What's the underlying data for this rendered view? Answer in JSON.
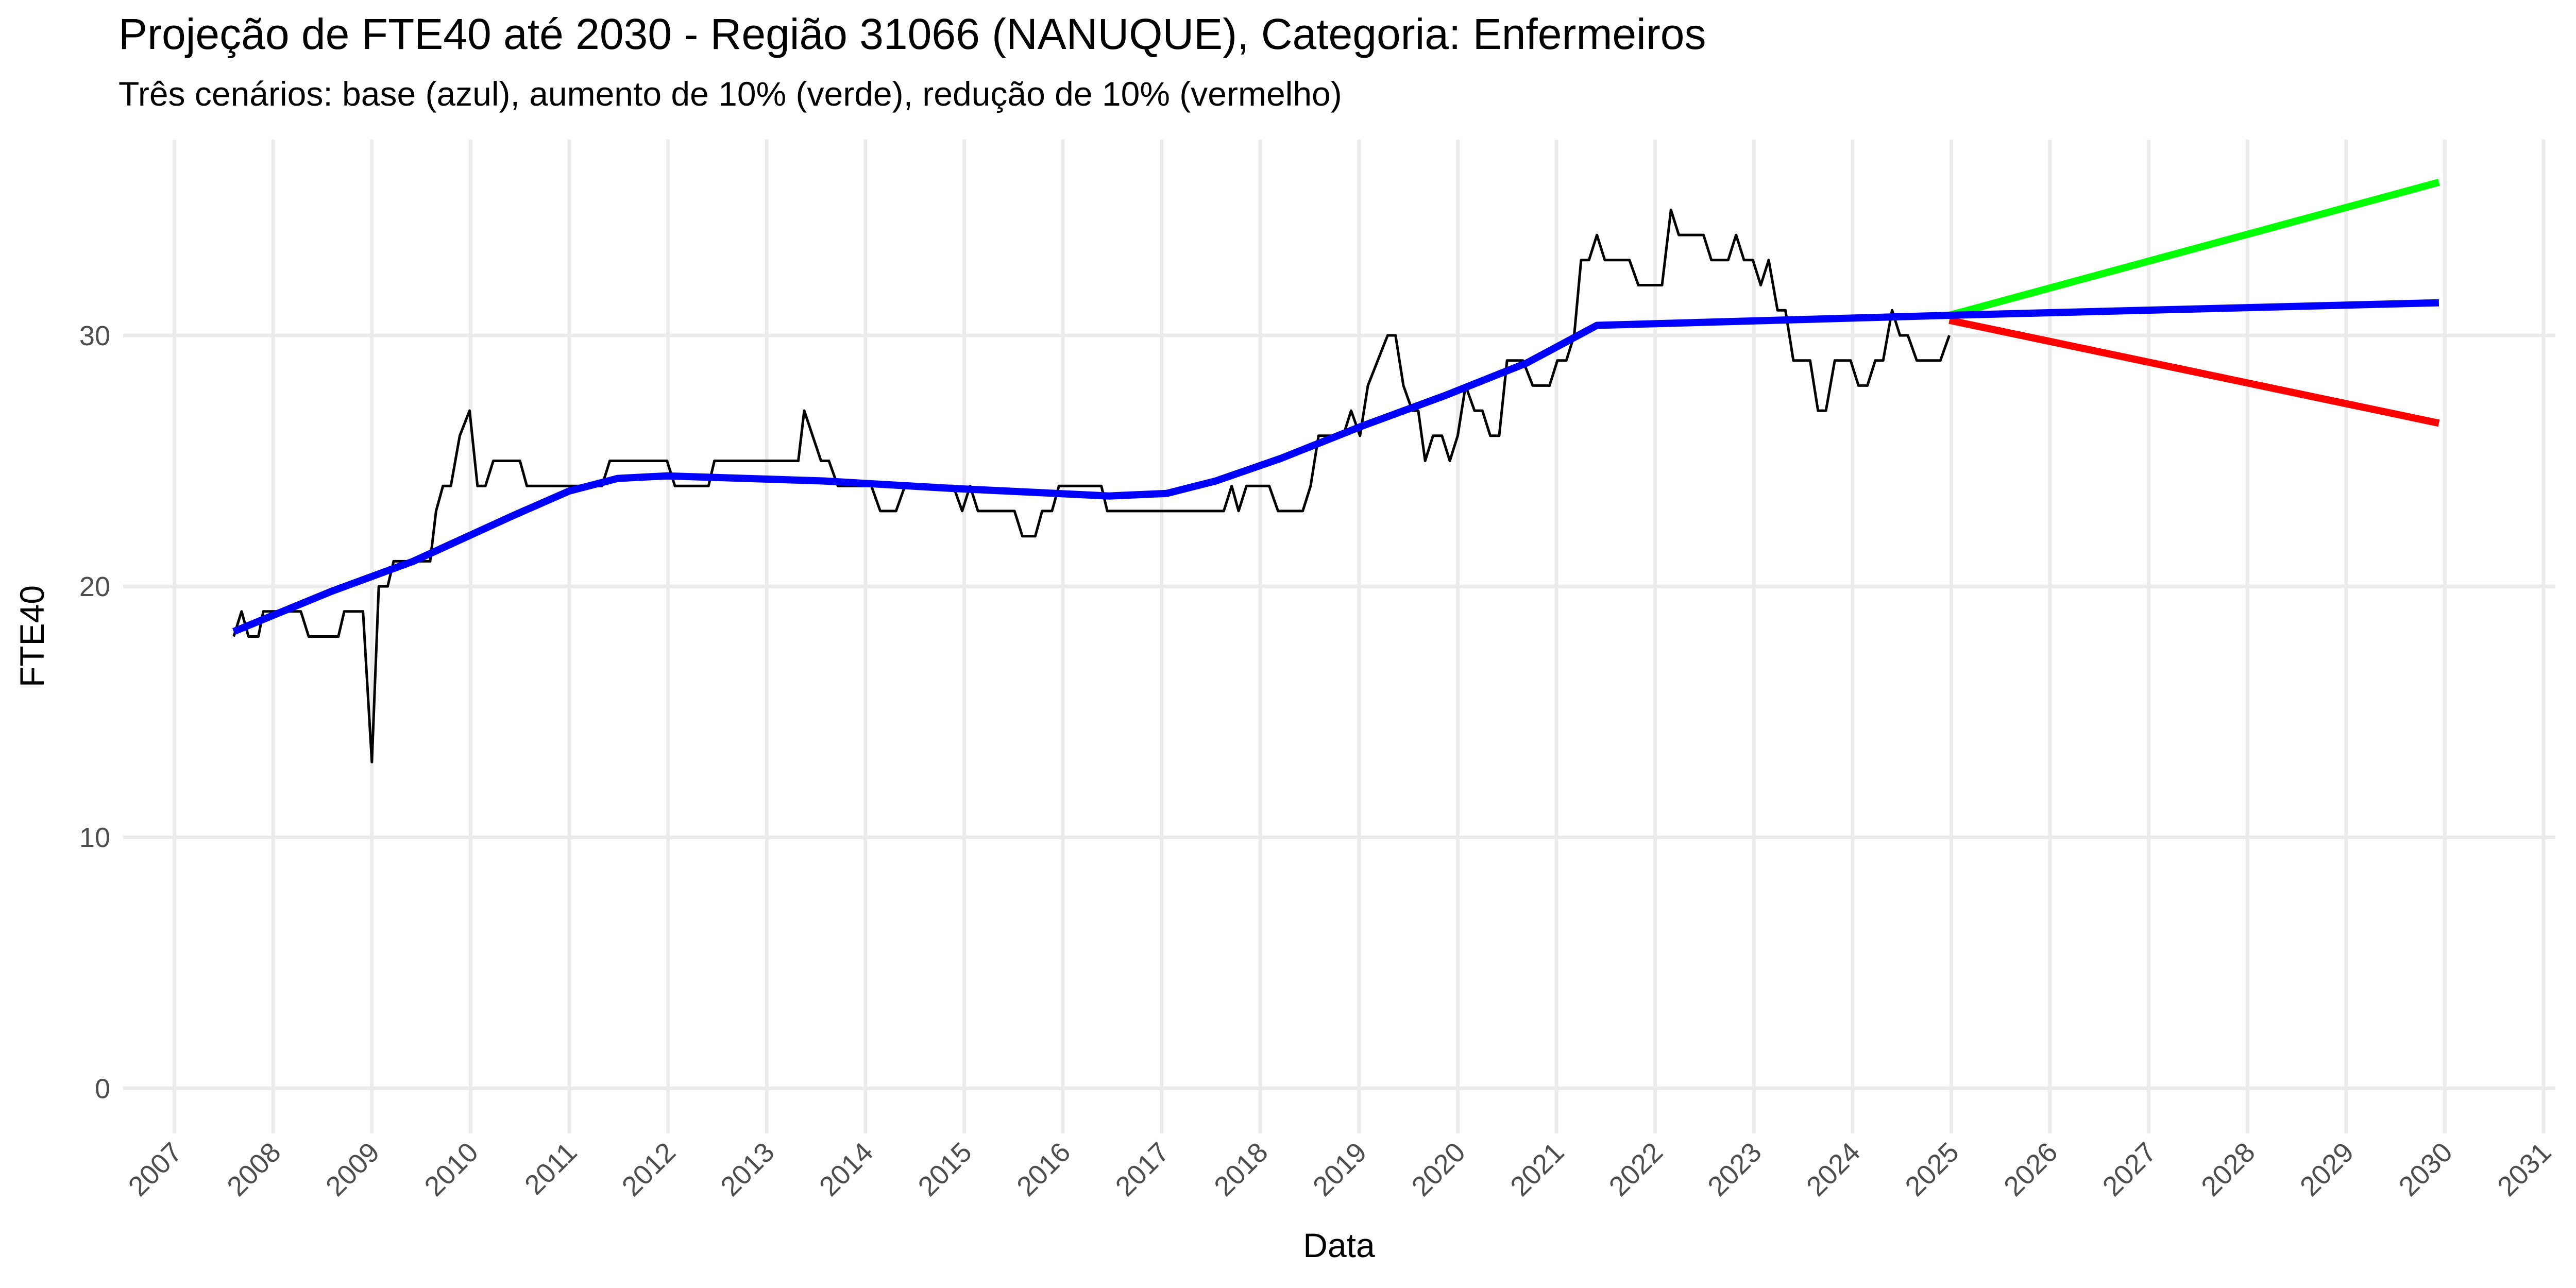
{
  "chart_data": {
    "type": "line",
    "title": "Projeção de FTE40 até 2030 - Região 31066 (NANUQUE), Categoria: Enfermeiros",
    "subtitle": "Três cenários: base (azul), aumento de 10% (verde), redução de 10% (vermelho)",
    "x_label": "Data",
    "y_label": "FTE40",
    "xlim": [
      2006.48,
      2031.12
    ],
    "ylim": [
      -1.8,
      37.8
    ],
    "xticks": [
      2007,
      2008,
      2009,
      2010,
      2011,
      2012,
      2013,
      2014,
      2015,
      2016,
      2017,
      2018,
      2019,
      2020,
      2021,
      2022,
      2023,
      2024,
      2025,
      2026,
      2027,
      2028,
      2029,
      2030,
      2031
    ],
    "yticks": [
      0,
      10,
      20,
      30
    ],
    "grid": true,
    "series": [
      {
        "color": "#000000",
        "width": 5,
        "x": [
          2007.6,
          2007.68,
          2007.75,
          2007.85,
          2007.9,
          2008.28,
          2008.36,
          2008.66,
          2008.72,
          2008.91,
          2009.0,
          2009.07,
          2009.16,
          2009.22,
          2009.59,
          2009.65,
          2009.72,
          2009.8,
          2009.89,
          2009.99,
          2010.07,
          2010.15,
          2010.23,
          2010.5,
          2010.57,
          2011.33,
          2011.41,
          2011.99,
          2012.07,
          2012.41,
          2012.47,
          2013.32,
          2013.38,
          2013.55,
          2013.63,
          2013.72,
          2014.06,
          2014.15,
          2014.31,
          2014.4,
          2014.89,
          2014.98,
          2015.06,
          2015.14,
          2015.51,
          2015.59,
          2015.72,
          2015.79,
          2015.89,
          2015.96,
          2016.39,
          2016.45,
          2017.63,
          2017.71,
          2017.78,
          2017.86,
          2018.09,
          2018.18,
          2018.43,
          2018.51,
          2018.59,
          2018.84,
          2018.92,
          2019.01,
          2019.09,
          2019.29,
          2019.37,
          2019.45,
          2019.54,
          2019.6,
          2019.67,
          2019.75,
          2019.84,
          2019.92,
          2020.0,
          2020.08,
          2020.17,
          2020.25,
          2020.33,
          2020.42,
          2020.5,
          2020.66,
          2020.76,
          2020.93,
          2021.01,
          2021.1,
          2021.18,
          2021.25,
          2021.33,
          2021.41,
          2021.49,
          2021.74,
          2021.83,
          2022.07,
          2022.16,
          2022.24,
          2022.49,
          2022.57,
          2022.74,
          2022.82,
          2022.9,
          2022.99,
          2023.07,
          2023.15,
          2023.24,
          2023.32,
          2023.4,
          2023.57,
          2023.65,
          2023.73,
          2023.82,
          2023.98,
          2024.06,
          2024.15,
          2024.23,
          2024.31,
          2024.4,
          2024.48,
          2024.56,
          2024.65,
          2024.89,
          2024.98
        ],
        "values": [
          18,
          19,
          18,
          18,
          19,
          19,
          18,
          18,
          19,
          19,
          13,
          20,
          20,
          21,
          21,
          23,
          24,
          24,
          26,
          27,
          24,
          24,
          25,
          25,
          24,
          24,
          25,
          25,
          24,
          24,
          25,
          25,
          27,
          25,
          25,
          24,
          24,
          23,
          23,
          24,
          24,
          23,
          24,
          23,
          23,
          22,
          22,
          23,
          23,
          24,
          24,
          23,
          23,
          24,
          23,
          24,
          24,
          23,
          23,
          24,
          26,
          26,
          27,
          26,
          28,
          30,
          30,
          28,
          27,
          27,
          25,
          26,
          26,
          25,
          26,
          28,
          27,
          27,
          26,
          26,
          29,
          29,
          28,
          28,
          29,
          29,
          30,
          33,
          33,
          34,
          33,
          33,
          32,
          32,
          35,
          34,
          34,
          33,
          33,
          34,
          33,
          33,
          32,
          33,
          31,
          31,
          29,
          29,
          27,
          27,
          29,
          29,
          28,
          28,
          29,
          29,
          31,
          30,
          30,
          29,
          29,
          30
        ]
      },
      {
        "color": "#00ff00",
        "width": 14,
        "x": [
          2024.98,
          2029.94
        ],
        "values": [
          30.8,
          36.1
        ]
      },
      {
        "color": "#ff0000",
        "width": 14,
        "x": [
          2024.98,
          2029.94
        ],
        "values": [
          30.6,
          26.5
        ]
      },
      {
        "color": "#0000ff",
        "width": 14,
        "x": [
          2007.6,
          2008.59,
          2009.42,
          2010.42,
          2011.0,
          2011.49,
          2011.99,
          2013.57,
          2014.89,
          2016.47,
          2017.05,
          2017.55,
          2018.21,
          2019.04,
          2019.87,
          2020.7,
          2021.41,
          2024.98,
          2029.94
        ],
        "values": [
          18.2,
          19.8,
          21.0,
          22.8,
          23.8,
          24.3,
          24.4,
          24.2,
          23.9,
          23.6,
          23.7,
          24.2,
          25.1,
          26.4,
          27.6,
          28.9,
          30.4,
          30.8,
          31.3
        ]
      }
    ]
  }
}
